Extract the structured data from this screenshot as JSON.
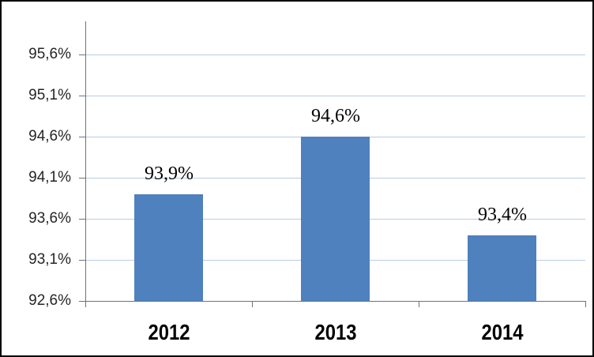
{
  "chart_data": {
    "type": "bar",
    "categories": [
      "2012",
      "2013",
      "2014"
    ],
    "values": [
      93.9,
      94.6,
      93.4
    ],
    "bar_labels": [
      "93,9%",
      "94,6%",
      "93,4%"
    ],
    "ytick_values": [
      95.6,
      95.1,
      94.6,
      94.1,
      93.6,
      93.1,
      92.6
    ],
    "ytick_labels": [
      "95,6%",
      "95,1%",
      "94,6%",
      "94,1%",
      "93,6%",
      "93,1%",
      "92,6%"
    ],
    "ylim": [
      92.6,
      96.0
    ],
    "xlabel": "",
    "ylabel": "",
    "grid": true,
    "legend": false,
    "colors": {
      "bar": "#4E81BD",
      "gridline": "#B8CCE4",
      "axis": "#737373",
      "ylabel_text": "#262626",
      "label_text": "#000000",
      "frame_border": "#000000",
      "background": "#FFFFFF"
    }
  }
}
